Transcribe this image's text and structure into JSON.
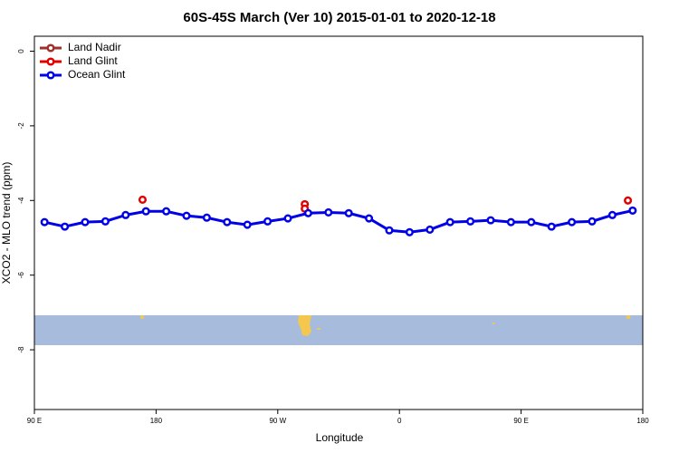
{
  "chart_data": {
    "type": "scatter",
    "title": "60S-45S March (Ver 10)   2015-01-01 to 2020-12-18",
    "x_label": "Longitude",
    "y_label": "XCO2 - MLO trend (ppm)",
    "xlim": [
      90,
      540
    ],
    "ylim": [
      -9.6,
      0.4
    ],
    "xticks": [
      {
        "value": 90,
        "label": "90 E"
      },
      {
        "value": 180,
        "label": "180"
      },
      {
        "value": 270,
        "label": "90 W"
      },
      {
        "value": 360,
        "label": "0"
      },
      {
        "value": 450,
        "label": "90 E"
      },
      {
        "value": 540,
        "label": "180"
      }
    ],
    "yticks": [
      0,
      -2,
      -4,
      -6,
      -8
    ],
    "legend": "top-left",
    "series": [
      {
        "name": "Land Nadir",
        "color": "#a0302a",
        "x": [],
        "values": []
      },
      {
        "name": "Land Glint",
        "color": "#e00000",
        "x": [
          170,
          290,
          290,
          529
        ],
        "values": [
          -3.98,
          -4.1,
          -4.22,
          -4.0
        ]
      },
      {
        "name": "Ocean Glint",
        "color": "#0000e8",
        "connected": true,
        "x": [
          97.5,
          112.5,
          127.5,
          142.5,
          157.5,
          172.5,
          187.5,
          202.5,
          217.5,
          232.5,
          247.5,
          262.5,
          277.5,
          292.5,
          307.5,
          322.5,
          337.5,
          352.5,
          367.5,
          382.5,
          397.5,
          412.5,
          427.5,
          442.5,
          457.5,
          472.5,
          487.5,
          502.5,
          517.5,
          532.5
        ],
        "values": [
          -4.58,
          -4.7,
          -4.58,
          -4.56,
          -4.39,
          -4.29,
          -4.29,
          -4.41,
          -4.46,
          -4.58,
          -4.65,
          -4.56,
          -4.48,
          -4.34,
          -4.32,
          -4.34,
          -4.48,
          -4.8,
          -4.85,
          -4.78,
          -4.58,
          -4.56,
          -4.53,
          -4.58,
          -4.58,
          -4.7,
          -4.58,
          -4.56,
          -4.39,
          -4.27
        ]
      }
    ]
  }
}
